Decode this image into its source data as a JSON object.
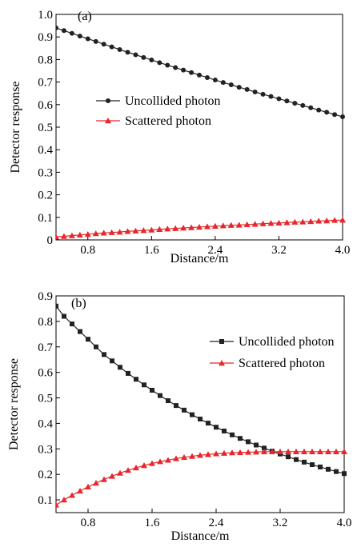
{
  "chart_data": [
    {
      "type": "line",
      "panel_label": "(a)",
      "xlabel": "Distance/m",
      "ylabel": "Detector response",
      "xlim": [
        0.4,
        4.0
      ],
      "ylim": [
        0.0,
        1.0
      ],
      "xticks": [
        "0.8",
        "1.6",
        "2.4",
        "3.2",
        "4.0"
      ],
      "yticks": [
        "0",
        "0.1",
        "0.2",
        "0.3",
        "0.4",
        "0.5",
        "0.6",
        "0.7",
        "0.8",
        "0.9",
        "1.0"
      ],
      "legend_position": "center-right",
      "series": [
        {
          "name": "Uncollided photon",
          "color": "#222222",
          "marker": "circle",
          "x": [
            0.4,
            0.5,
            0.6,
            0.7,
            0.8,
            0.9,
            1.0,
            1.1,
            1.2,
            1.3,
            1.4,
            1.5,
            1.6,
            1.7,
            1.8,
            1.9,
            2.0,
            2.1,
            2.2,
            2.3,
            2.4,
            2.5,
            2.6,
            2.7,
            2.8,
            2.9,
            3.0,
            3.1,
            3.2,
            3.3,
            3.4,
            3.5,
            3.6,
            3.7,
            3.8,
            3.9,
            4.0
          ],
          "values": [
            0.94,
            0.928,
            0.916,
            0.904,
            0.892,
            0.88,
            0.868,
            0.856,
            0.844,
            0.832,
            0.821,
            0.809,
            0.798,
            0.786,
            0.775,
            0.764,
            0.753,
            0.742,
            0.731,
            0.72,
            0.709,
            0.698,
            0.688,
            0.677,
            0.667,
            0.656,
            0.646,
            0.636,
            0.626,
            0.616,
            0.606,
            0.596,
            0.586,
            0.576,
            0.566,
            0.556,
            0.546
          ]
        },
        {
          "name": "Scattered photon",
          "color": "#e8262b",
          "marker": "triangle",
          "x": [
            0.4,
            0.5,
            0.6,
            0.7,
            0.8,
            0.9,
            1.0,
            1.1,
            1.2,
            1.3,
            1.4,
            1.5,
            1.6,
            1.7,
            1.8,
            1.9,
            2.0,
            2.1,
            2.2,
            2.3,
            2.4,
            2.5,
            2.6,
            2.7,
            2.8,
            2.9,
            3.0,
            3.1,
            3.2,
            3.3,
            3.4,
            3.5,
            3.6,
            3.7,
            3.8,
            3.9,
            4.0
          ],
          "values": [
            0.013,
            0.016,
            0.019,
            0.022,
            0.025,
            0.028,
            0.031,
            0.033,
            0.035,
            0.038,
            0.04,
            0.042,
            0.044,
            0.047,
            0.049,
            0.051,
            0.053,
            0.055,
            0.057,
            0.059,
            0.061,
            0.063,
            0.065,
            0.066,
            0.068,
            0.07,
            0.072,
            0.074,
            0.075,
            0.077,
            0.079,
            0.08,
            0.082,
            0.084,
            0.085,
            0.087,
            0.088
          ]
        }
      ]
    },
    {
      "type": "line",
      "panel_label": "(b)",
      "xlabel": "Distance/m",
      "ylabel": "Detector response",
      "xlim": [
        0.4,
        4.0
      ],
      "ylim": [
        0.05,
        0.9
      ],
      "xticks": [
        "0.8",
        "1.6",
        "2.4",
        "3.2",
        "4.0"
      ],
      "yticks": [
        "0.1",
        "0.2",
        "0.3",
        "0.4",
        "0.5",
        "0.6",
        "0.7",
        "0.8",
        "0.9"
      ],
      "legend_position": "upper-right",
      "series": [
        {
          "name": "Uncollided photon",
          "color": "#222222",
          "marker": "square",
          "x": [
            0.4,
            0.5,
            0.6,
            0.7,
            0.8,
            0.9,
            1.0,
            1.1,
            1.2,
            1.3,
            1.4,
            1.5,
            1.6,
            1.7,
            1.8,
            1.9,
            2.0,
            2.1,
            2.2,
            2.3,
            2.4,
            2.5,
            2.6,
            2.7,
            2.8,
            2.9,
            3.0,
            3.1,
            3.2,
            3.3,
            3.4,
            3.5,
            3.6,
            3.7,
            3.8,
            3.9,
            4.0
          ],
          "values": [
            0.86,
            0.82,
            0.79,
            0.76,
            0.73,
            0.7,
            0.67,
            0.645,
            0.62,
            0.596,
            0.573,
            0.551,
            0.53,
            0.509,
            0.489,
            0.47,
            0.452,
            0.434,
            0.417,
            0.401,
            0.385,
            0.37,
            0.355,
            0.341,
            0.328,
            0.315,
            0.303,
            0.291,
            0.28,
            0.269,
            0.258,
            0.248,
            0.238,
            0.229,
            0.22,
            0.211,
            0.203
          ]
        },
        {
          "name": "Scattered photon",
          "color": "#e8262b",
          "marker": "triangle",
          "x": [
            0.4,
            0.5,
            0.6,
            0.7,
            0.8,
            0.9,
            1.0,
            1.1,
            1.2,
            1.3,
            1.4,
            1.5,
            1.6,
            1.7,
            1.8,
            1.9,
            2.0,
            2.1,
            2.2,
            2.3,
            2.4,
            2.5,
            2.6,
            2.7,
            2.8,
            2.9,
            3.0,
            3.1,
            3.2,
            3.3,
            3.4,
            3.5,
            3.6,
            3.7,
            3.8,
            3.9,
            4.0
          ],
          "values": [
            0.08,
            0.1,
            0.118,
            0.135,
            0.151,
            0.166,
            0.18,
            0.193,
            0.205,
            0.216,
            0.226,
            0.235,
            0.243,
            0.25,
            0.256,
            0.262,
            0.267,
            0.271,
            0.275,
            0.278,
            0.281,
            0.283,
            0.285,
            0.286,
            0.287,
            0.288,
            0.289,
            0.289,
            0.289,
            0.289,
            0.289,
            0.289,
            0.289,
            0.289,
            0.289,
            0.289,
            0.289
          ]
        }
      ]
    }
  ]
}
